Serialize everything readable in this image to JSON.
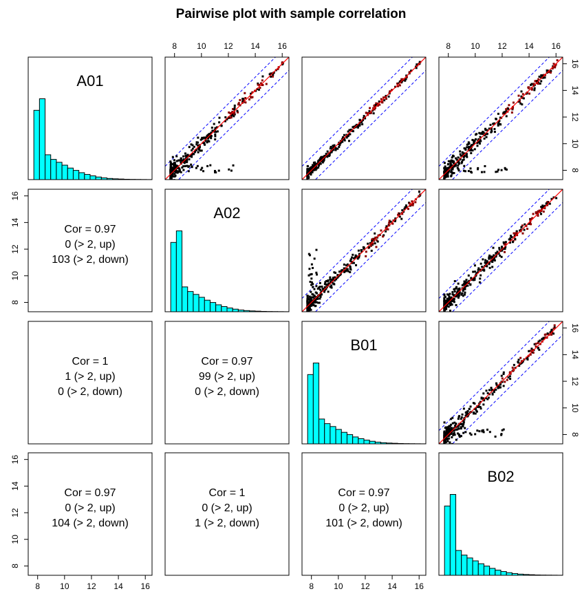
{
  "chart_data": {
    "type": "scatter",
    "title": "Pairwise plot with sample correlation",
    "samples": [
      "A01",
      "A02",
      "B01",
      "B02"
    ],
    "axis_range": [
      7.3,
      16.5
    ],
    "axis_ticks": [
      8,
      10,
      12,
      14,
      16
    ],
    "fold_threshold": 2,
    "diagonal_line_color": "#ff0000",
    "band_line_color": "#0000ff",
    "histogram_color": "#00ffff",
    "histogram_bins": [
      7.2,
      7.6,
      8.0,
      8.4,
      8.8,
      9.2,
      9.6,
      10.0,
      10.4,
      10.8,
      11.2,
      11.6,
      12.0,
      12.4,
      12.8,
      13.2,
      13.6,
      14.0,
      14.4,
      14.8,
      15.2,
      15.6,
      16.0
    ],
    "histogram_counts": [
      0,
      1200,
      1400,
      430,
      350,
      300,
      250,
      200,
      160,
      120,
      90,
      65,
      45,
      30,
      20,
      14,
      10,
      6,
      4,
      3,
      2,
      1
    ],
    "pairs": [
      {
        "row": 1,
        "col": 0,
        "cor": "Cor = 0.97",
        "up": "0 (> 2, up)",
        "down": "103 (> 2, down)"
      },
      {
        "row": 2,
        "col": 0,
        "cor": "Cor = 1",
        "up": "1 (> 2, up)",
        "down": "0 (> 2, down)"
      },
      {
        "row": 2,
        "col": 1,
        "cor": "Cor = 0.97",
        "up": "99 (> 2, up)",
        "down": "0 (> 2, down)"
      },
      {
        "row": 3,
        "col": 0,
        "cor": "Cor = 0.97",
        "up": "0 (> 2, up)",
        "down": "104 (> 2, down)"
      },
      {
        "row": 3,
        "col": 1,
        "cor": "Cor = 1",
        "up": "0 (> 2, up)",
        "down": "1 (> 2, down)"
      },
      {
        "row": 3,
        "col": 2,
        "cor": "Cor = 0.97",
        "up": "0 (> 2, up)",
        "down": "101 (> 2, down)"
      }
    ]
  }
}
